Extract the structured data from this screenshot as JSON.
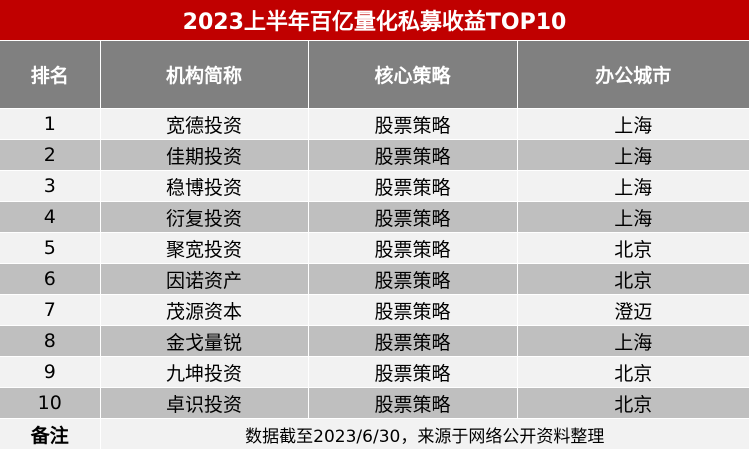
{
  "title": "2023上半年百亿量化私募收益TOP10",
  "headers": [
    "排名",
    "机构简称",
    "核心策略",
    "办公城市"
  ],
  "rows": [
    [
      "1",
      "宽德投资",
      "股票策略",
      "上海"
    ],
    [
      "2",
      "佳期投资",
      "股票策略",
      "上海"
    ],
    [
      "3",
      "稳博投资",
      "股票策略",
      "上海"
    ],
    [
      "4",
      "衍复投资",
      "股票策略",
      "上海"
    ],
    [
      "5",
      "聚宽投资",
      "股票策略",
      "北京"
    ],
    [
      "6",
      "因诺资产",
      "股票策略",
      "北京"
    ],
    [
      "7",
      "茂源资本",
      "股票策略",
      "澄迈"
    ],
    [
      "8",
      "金戈量锐",
      "股票策略",
      "上海"
    ],
    [
      "9",
      "九坤投资",
      "股票策略",
      "北京"
    ],
    [
      "10",
      "卓识投资",
      "股票策略",
      "北京"
    ]
  ],
  "note": {
    "label": "备注",
    "text": "数据截至2023/6/30，来源于网络公开资料整理"
  },
  "colors": {
    "title_bg": "#c00000",
    "header_bg": "#808080",
    "row_light": "#f2f2f2",
    "row_dark": "#bfbfbf"
  }
}
